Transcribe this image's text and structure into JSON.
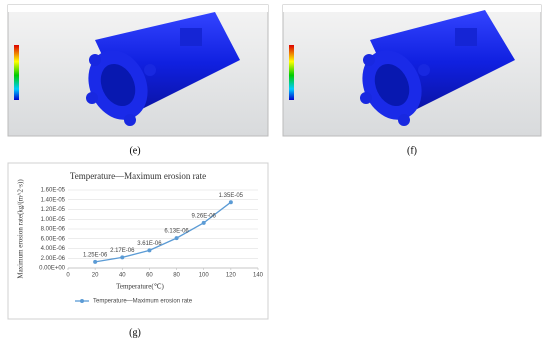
{
  "panel_labels": [
    "(e)",
    "(f)",
    "(g)"
  ],
  "chart_data": {
    "type": "line",
    "title": "Temperature—Maximum erosion rate",
    "x_label": "Temperature(℃)",
    "y_label": "Maximum erosion rate(kg/(m^2·s))",
    "x": [
      20,
      40,
      60,
      80,
      100,
      120
    ],
    "series": [
      {
        "name": "Temperature—Maximum erosion rate",
        "color": "#5b9bd5",
        "values": [
          1.25e-06,
          2.17e-06,
          3.61e-06,
          6.13e-06,
          9.26e-06,
          1.35e-05
        ],
        "value_labels": [
          "1.25E-06",
          "2.17E-06",
          "3.61E-06",
          "6.13E-06",
          "9.26E-06",
          "1.35E-05"
        ]
      }
    ],
    "xlim": [
      0,
      140
    ],
    "xticks": [
      0,
      20,
      40,
      60,
      80,
      100,
      120,
      140
    ],
    "ylim": [
      0,
      1.6e-05
    ],
    "yticks": [
      {
        "value": 0,
        "label": "0.00E+00"
      },
      {
        "value": 2e-06,
        "label": "2.00E-06"
      },
      {
        "value": 4e-06,
        "label": "4.00E-06"
      },
      {
        "value": 6e-06,
        "label": "6.00E-06"
      },
      {
        "value": 8e-06,
        "label": "8.00E-06"
      },
      {
        "value": 1e-05,
        "label": "1.00E-05"
      },
      {
        "value": 1.2e-05,
        "label": "1.20E-05"
      },
      {
        "value": 1.4e-05,
        "label": "1.40E-05"
      },
      {
        "value": 1.6e-05,
        "label": "1.60E-05"
      }
    ],
    "grid": true
  }
}
